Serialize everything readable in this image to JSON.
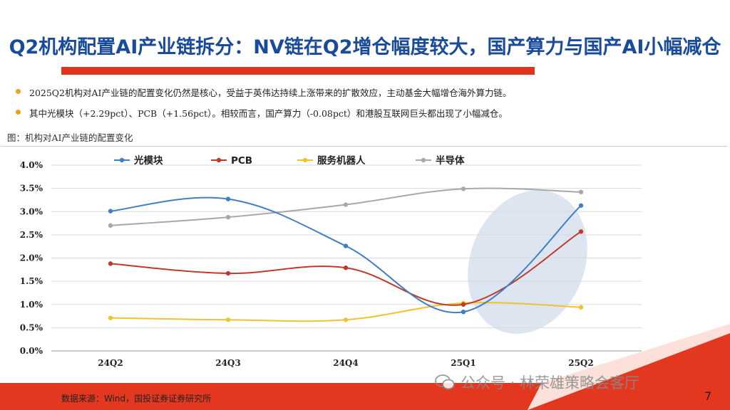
{
  "slide": {
    "title": "Q2机构配置AI产业链拆分：NV链在Q2增仓幅度较大，国产算力与国产AI小幅减仓",
    "bullets": [
      "2025Q2机构对AI产业链的配置变化仍然是核心，受益于英伟达持续上涨带来的扩散效应，主动基金大幅增仓海外算力链。",
      "其中光模块（+2.29pct）、PCB（+1.56pct）。相较而言，国产算力（-0.08pct）和港股互联网巨头都出现了小幅减仓。"
    ],
    "caption": "图：机构对AI产业链的配置变化",
    "source": "数据来源：Wind，国投证券证券研究所",
    "watermark": "公众号 · 林荣雄策略会客厅",
    "page_number": "7",
    "colors": {
      "title": "#1a4b9b",
      "accent_red": "#e0341e",
      "bullet_dot": "#f0a21c"
    }
  },
  "chart_data": {
    "type": "line",
    "categories": [
      "24Q2",
      "24Q3",
      "24Q4",
      "25Q1",
      "25Q2"
    ],
    "ylim": [
      0,
      4.0
    ],
    "yticks": [
      "0.0%",
      "0.5%",
      "1.0%",
      "1.5%",
      "2.0%",
      "2.5%",
      "3.0%",
      "3.5%",
      "4.0%"
    ],
    "smooth": true,
    "grid": true,
    "legend_position": "top",
    "series": [
      {
        "name": "光模块",
        "color": "#3f7fc3",
        "values": [
          3.01,
          3.27,
          2.26,
          0.84,
          3.13
        ]
      },
      {
        "name": "PCB",
        "color": "#c0392b",
        "values": [
          1.88,
          1.67,
          1.79,
          1.0,
          2.57
        ]
      },
      {
        "name": "服务机器人",
        "color": "#f2c12e",
        "values": [
          0.71,
          0.67,
          0.67,
          1.03,
          0.94
        ]
      },
      {
        "name": "半导体",
        "color": "#a8a8a8",
        "values": [
          2.7,
          2.88,
          3.15,
          3.49,
          3.42
        ]
      }
    ],
    "highlight_ellipse_color": "#d7e1ee"
  }
}
